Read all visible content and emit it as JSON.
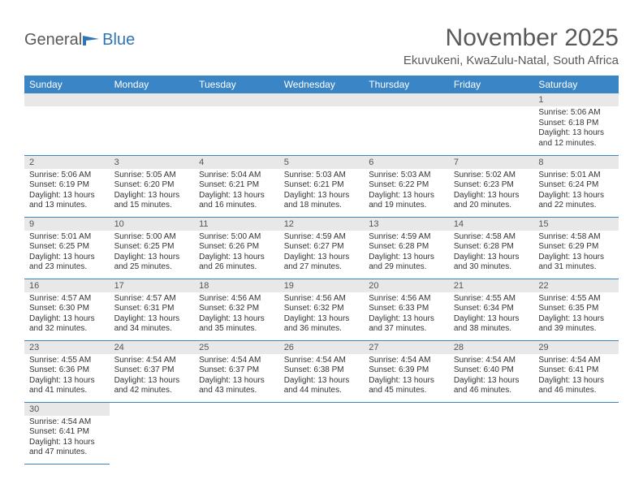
{
  "logo": {
    "text1": "General",
    "text2": "Blue"
  },
  "title": "November 2025",
  "location": "Ekuvukeni, KwaZulu-Natal, South Africa",
  "header_color": "#3a85c6",
  "daynum_bg": "#e8e8e8",
  "days_of_week": [
    "Sunday",
    "Monday",
    "Tuesday",
    "Wednesday",
    "Thursday",
    "Friday",
    "Saturday"
  ],
  "weeks": [
    [
      null,
      null,
      null,
      null,
      null,
      null,
      {
        "n": "1",
        "sr": "5:06 AM",
        "ss": "6:18 PM",
        "dl": "13 hours and 12 minutes."
      }
    ],
    [
      {
        "n": "2",
        "sr": "5:06 AM",
        "ss": "6:19 PM",
        "dl": "13 hours and 13 minutes."
      },
      {
        "n": "3",
        "sr": "5:05 AM",
        "ss": "6:20 PM",
        "dl": "13 hours and 15 minutes."
      },
      {
        "n": "4",
        "sr": "5:04 AM",
        "ss": "6:21 PM",
        "dl": "13 hours and 16 minutes."
      },
      {
        "n": "5",
        "sr": "5:03 AM",
        "ss": "6:21 PM",
        "dl": "13 hours and 18 minutes."
      },
      {
        "n": "6",
        "sr": "5:03 AM",
        "ss": "6:22 PM",
        "dl": "13 hours and 19 minutes."
      },
      {
        "n": "7",
        "sr": "5:02 AM",
        "ss": "6:23 PM",
        "dl": "13 hours and 20 minutes."
      },
      {
        "n": "8",
        "sr": "5:01 AM",
        "ss": "6:24 PM",
        "dl": "13 hours and 22 minutes."
      }
    ],
    [
      {
        "n": "9",
        "sr": "5:01 AM",
        "ss": "6:25 PM",
        "dl": "13 hours and 23 minutes."
      },
      {
        "n": "10",
        "sr": "5:00 AM",
        "ss": "6:25 PM",
        "dl": "13 hours and 25 minutes."
      },
      {
        "n": "11",
        "sr": "5:00 AM",
        "ss": "6:26 PM",
        "dl": "13 hours and 26 minutes."
      },
      {
        "n": "12",
        "sr": "4:59 AM",
        "ss": "6:27 PM",
        "dl": "13 hours and 27 minutes."
      },
      {
        "n": "13",
        "sr": "4:59 AM",
        "ss": "6:28 PM",
        "dl": "13 hours and 29 minutes."
      },
      {
        "n": "14",
        "sr": "4:58 AM",
        "ss": "6:28 PM",
        "dl": "13 hours and 30 minutes."
      },
      {
        "n": "15",
        "sr": "4:58 AM",
        "ss": "6:29 PM",
        "dl": "13 hours and 31 minutes."
      }
    ],
    [
      {
        "n": "16",
        "sr": "4:57 AM",
        "ss": "6:30 PM",
        "dl": "13 hours and 32 minutes."
      },
      {
        "n": "17",
        "sr": "4:57 AM",
        "ss": "6:31 PM",
        "dl": "13 hours and 34 minutes."
      },
      {
        "n": "18",
        "sr": "4:56 AM",
        "ss": "6:32 PM",
        "dl": "13 hours and 35 minutes."
      },
      {
        "n": "19",
        "sr": "4:56 AM",
        "ss": "6:32 PM",
        "dl": "13 hours and 36 minutes."
      },
      {
        "n": "20",
        "sr": "4:56 AM",
        "ss": "6:33 PM",
        "dl": "13 hours and 37 minutes."
      },
      {
        "n": "21",
        "sr": "4:55 AM",
        "ss": "6:34 PM",
        "dl": "13 hours and 38 minutes."
      },
      {
        "n": "22",
        "sr": "4:55 AM",
        "ss": "6:35 PM",
        "dl": "13 hours and 39 minutes."
      }
    ],
    [
      {
        "n": "23",
        "sr": "4:55 AM",
        "ss": "6:36 PM",
        "dl": "13 hours and 41 minutes."
      },
      {
        "n": "24",
        "sr": "4:54 AM",
        "ss": "6:37 PM",
        "dl": "13 hours and 42 minutes."
      },
      {
        "n": "25",
        "sr": "4:54 AM",
        "ss": "6:37 PM",
        "dl": "13 hours and 43 minutes."
      },
      {
        "n": "26",
        "sr": "4:54 AM",
        "ss": "6:38 PM",
        "dl": "13 hours and 44 minutes."
      },
      {
        "n": "27",
        "sr": "4:54 AM",
        "ss": "6:39 PM",
        "dl": "13 hours and 45 minutes."
      },
      {
        "n": "28",
        "sr": "4:54 AM",
        "ss": "6:40 PM",
        "dl": "13 hours and 46 minutes."
      },
      {
        "n": "29",
        "sr": "4:54 AM",
        "ss": "6:41 PM",
        "dl": "13 hours and 46 minutes."
      }
    ],
    [
      {
        "n": "30",
        "sr": "4:54 AM",
        "ss": "6:41 PM",
        "dl": "13 hours and 47 minutes."
      },
      null,
      null,
      null,
      null,
      null,
      null
    ]
  ],
  "labels": {
    "sunrise": "Sunrise: ",
    "sunset": "Sunset: ",
    "daylight": "Daylight: "
  }
}
